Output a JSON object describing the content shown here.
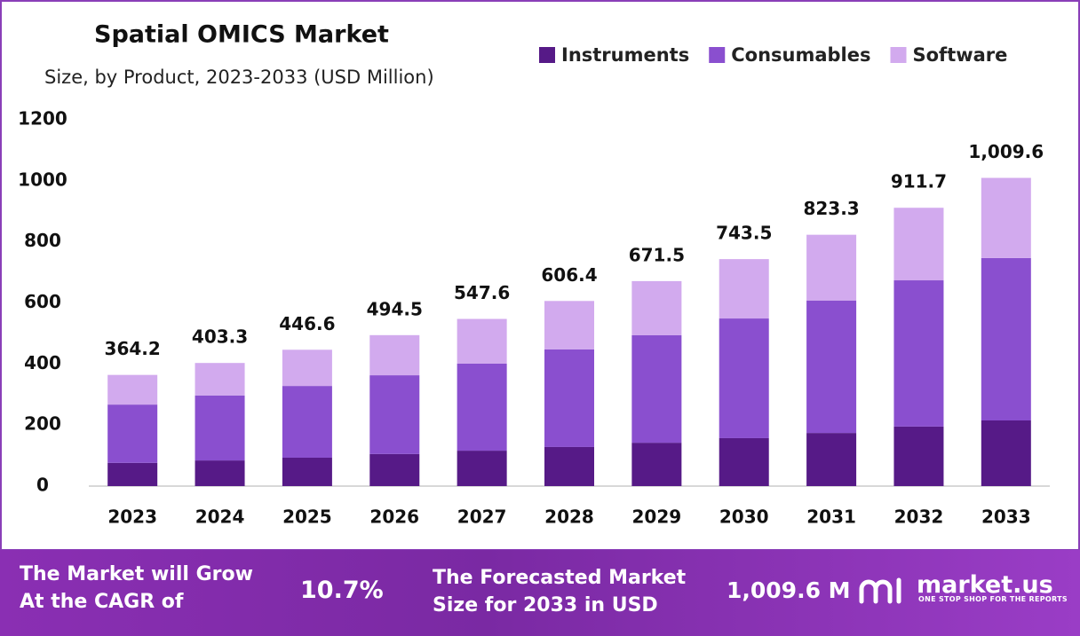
{
  "chart_data": {
    "type": "stacked-bar",
    "title": "Spatial OMICS Market",
    "subtitle": "Size, by Product, 2023-2033 (USD Million)",
    "categories": [
      "2023",
      "2024",
      "2025",
      "2026",
      "2027",
      "2028",
      "2029",
      "2030",
      "2031",
      "2032",
      "2033"
    ],
    "series": [
      {
        "name": "Instruments",
        "color": "#561a87",
        "values": [
          76,
          84,
          93,
          105,
          116,
          128,
          142,
          157,
          174,
          195,
          215
        ]
      },
      {
        "name": "Consumables",
        "color": "#8a4fcf",
        "values": [
          191,
          213,
          235,
          258,
          285,
          320,
          352,
          392,
          434,
          479,
          532
        ]
      },
      {
        "name": "Software",
        "color": "#d2aaee",
        "values": [
          97.2,
          106.3,
          118.6,
          131.5,
          146.6,
          158.4,
          177.5,
          194.5,
          215.3,
          237.7,
          262.6
        ]
      }
    ],
    "totals": {
      "values": [
        364.2,
        403.3,
        446.6,
        494.5,
        547.6,
        606.4,
        671.5,
        743.5,
        823.3,
        911.7,
        1009.6
      ],
      "value_labels": [
        "364.2",
        "403.3",
        "446.6",
        "494.5",
        "547.6",
        "606.4",
        "671.5",
        "743.5",
        "823.3",
        "911.7",
        "1,009.6"
      ]
    },
    "ylim": [
      0,
      1200
    ],
    "yticks": [
      0,
      200,
      400,
      600,
      800,
      1000,
      1200
    ],
    "grid": false,
    "legend": "top-right"
  },
  "footer": {
    "cagr_text": [
      "The Market will Grow",
      "At the CAGR of"
    ],
    "cagr": "10.7%",
    "forecast_text": [
      "The Forecasted Market",
      "Size for 2033 in USD"
    ],
    "forecast": "1,009.6 M",
    "brand": "market.us",
    "tagline": "ONE STOP SHOP FOR THE REPORTS"
  }
}
